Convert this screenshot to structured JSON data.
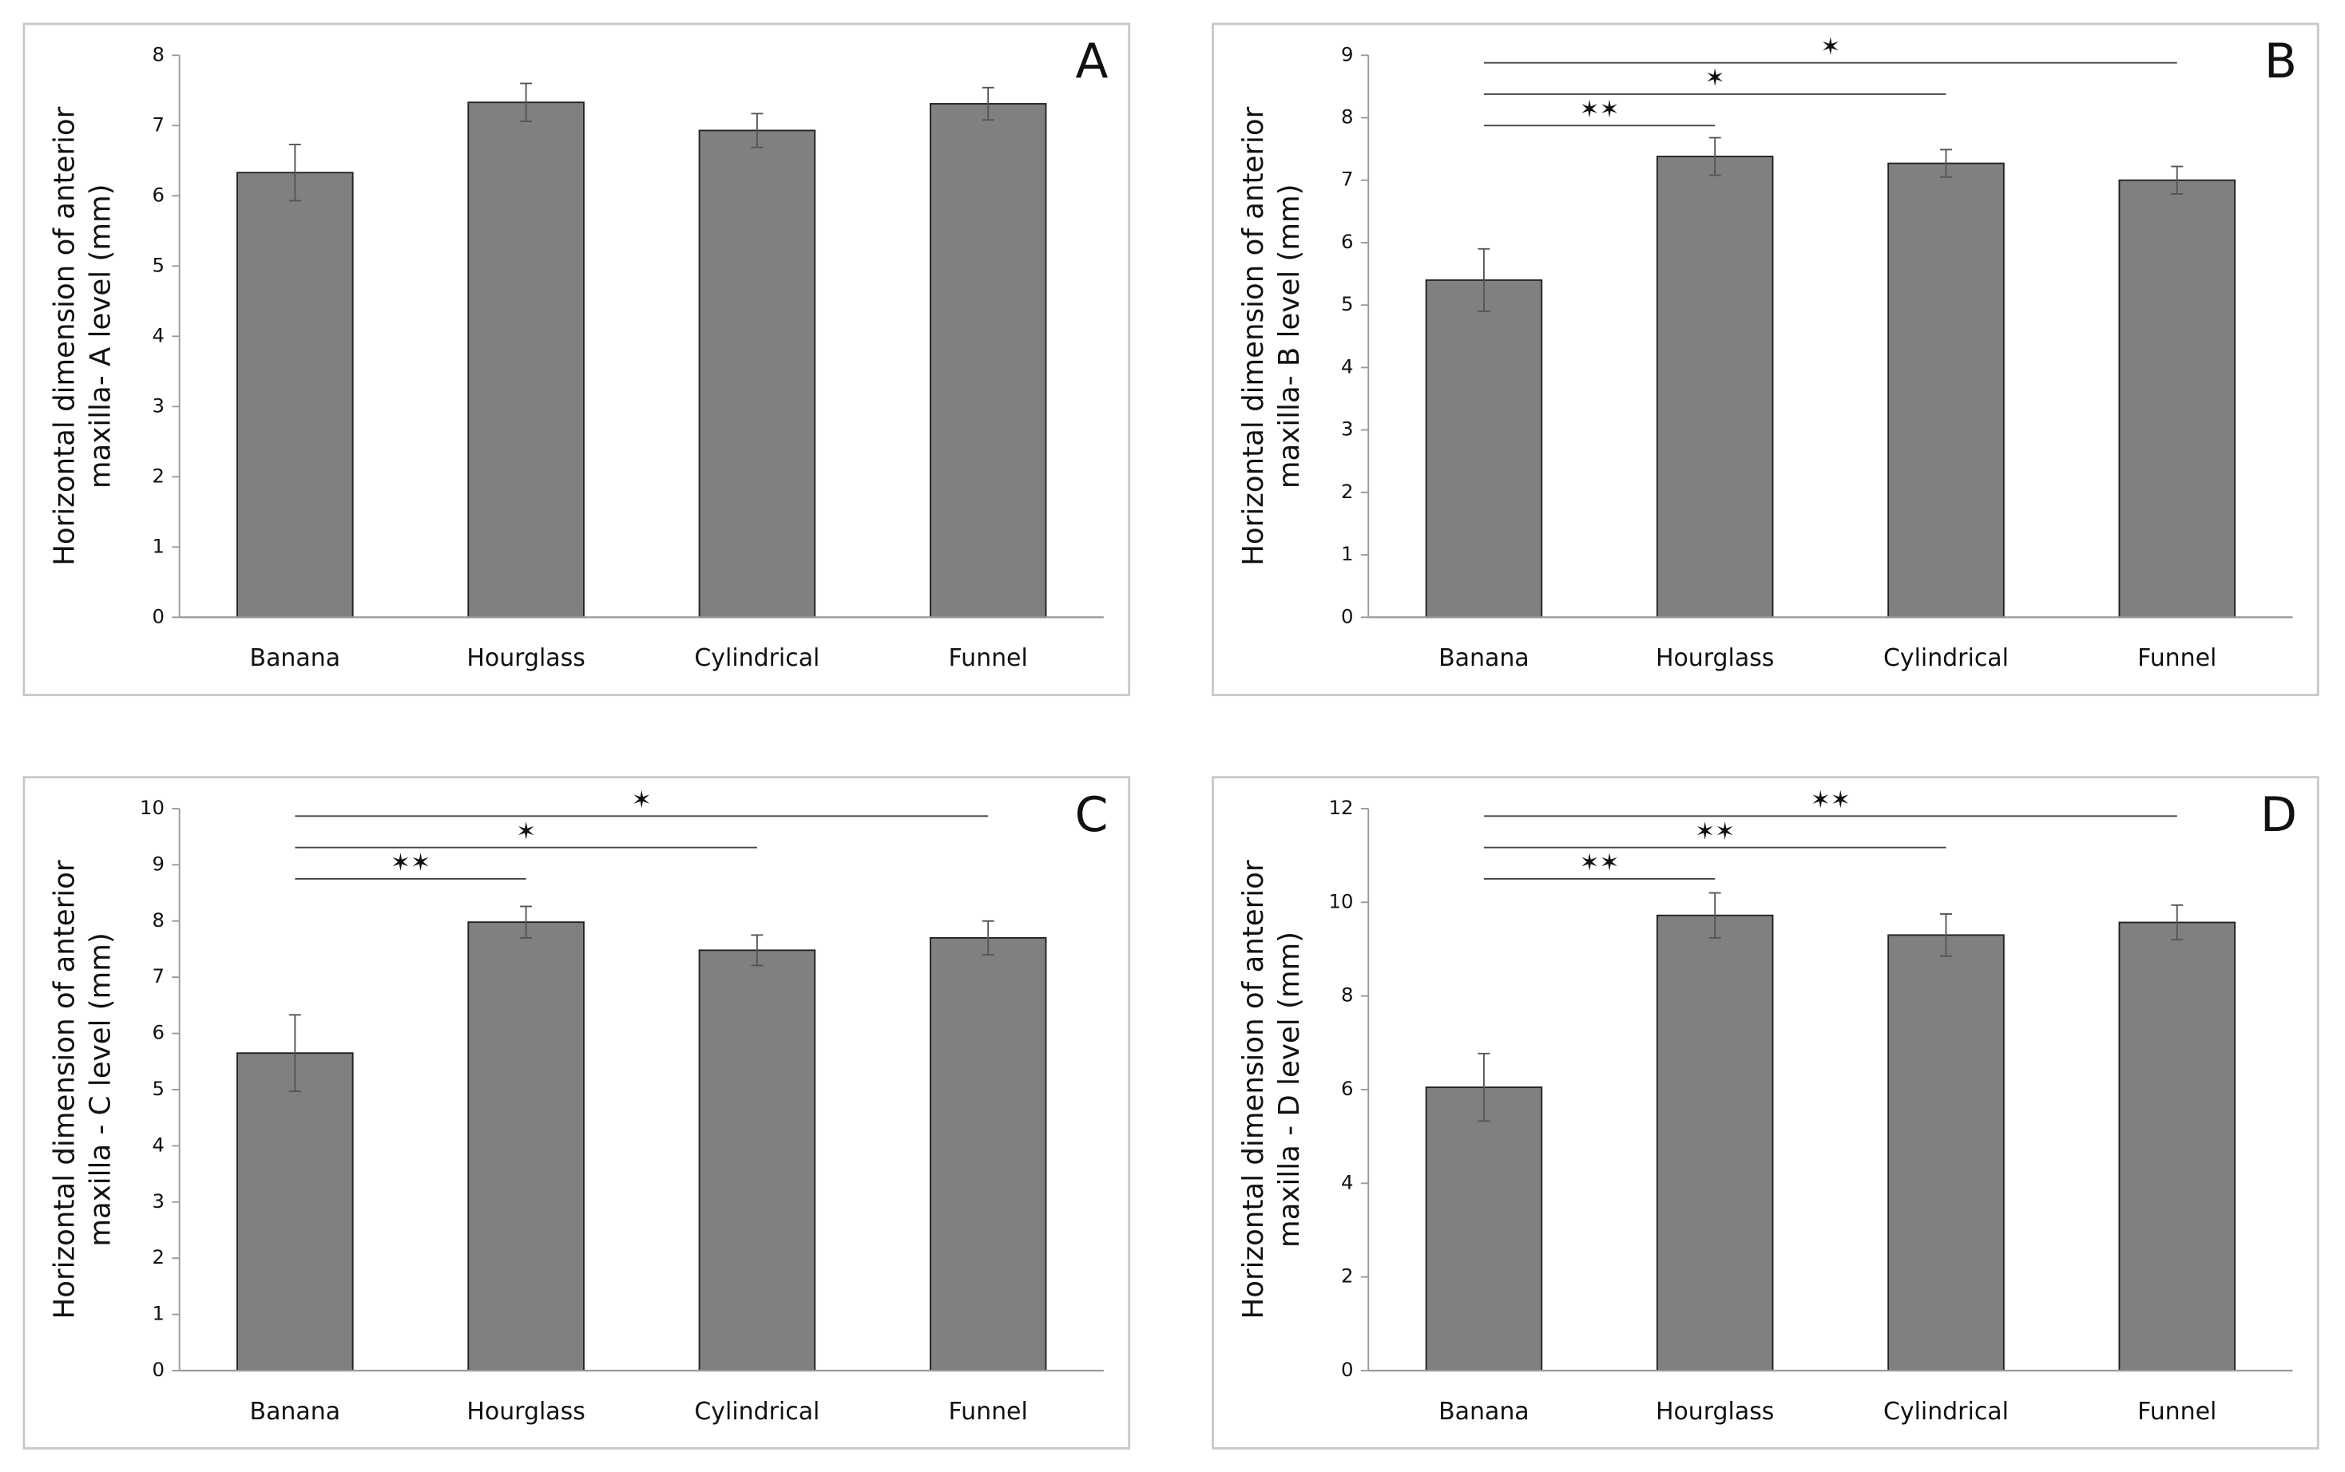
{
  "chart_data": [
    {
      "type": "bar",
      "panel_label": "A",
      "ylabel": [
        "Horizontal dimension of anterior",
        "maxilla- A level (mm)"
      ],
      "categories": [
        "Banana",
        "Hourglass",
        "Cylindrical",
        "Funnel"
      ],
      "values": [
        6.33,
        7.33,
        6.93,
        7.31
      ],
      "errors": [
        0.4,
        0.27,
        0.24,
        0.23
      ],
      "color": "#808080",
      "ylim": [
        0,
        8
      ],
      "yticks": [
        0,
        1,
        2,
        3,
        4,
        5,
        6,
        7,
        8
      ],
      "annotations": []
    },
    {
      "type": "bar",
      "panel_label": "B",
      "ylabel": [
        "Horizontal dimension of anterior",
        "maxilla- B level (mm)"
      ],
      "categories": [
        "Banana",
        "Hourglass",
        "Cylindrical",
        "Funnel"
      ],
      "values": [
        5.4,
        7.38,
        7.27,
        7.0
      ],
      "errors": [
        0.5,
        0.3,
        0.22,
        0.22
      ],
      "color": "#808080",
      "ylim": [
        0,
        9
      ],
      "yticks": [
        0,
        1,
        2,
        3,
        4,
        5,
        6,
        7,
        8,
        9
      ],
      "annotations": [
        "✶✶",
        "✶",
        "✶"
      ]
    },
    {
      "type": "bar",
      "panel_label": "C",
      "ylabel": [
        "Horizontal dimension of anterior",
        "maxilla - C level (mm)"
      ],
      "categories": [
        "Banana",
        "Hourglass",
        "Cylindrical",
        "Funnel"
      ],
      "values": [
        5.65,
        7.98,
        7.48,
        7.7
      ],
      "errors": [
        0.68,
        0.28,
        0.27,
        0.3
      ],
      "color": "#808080",
      "ylim": [
        0,
        10
      ],
      "yticks": [
        0,
        1,
        2,
        3,
        4,
        5,
        6,
        7,
        8,
        9,
        10
      ],
      "annotations": [
        "✶✶",
        "✶",
        "✶"
      ]
    },
    {
      "type": "bar",
      "panel_label": "D",
      "ylabel": [
        "Horizontal dimension of anterior",
        "maxilla - D level (mm)"
      ],
      "categories": [
        "Banana",
        "Hourglass",
        "Cylindrical",
        "Funnel"
      ],
      "values": [
        6.05,
        9.72,
        9.3,
        9.57
      ],
      "errors": [
        0.72,
        0.48,
        0.45,
        0.37
      ],
      "color": "#808080",
      "ylim": [
        0,
        12
      ],
      "yticks": [
        0,
        2,
        4,
        6,
        8,
        10,
        12
      ],
      "annotations": [
        "✶✶",
        "✶✶",
        "✶✶"
      ]
    }
  ]
}
